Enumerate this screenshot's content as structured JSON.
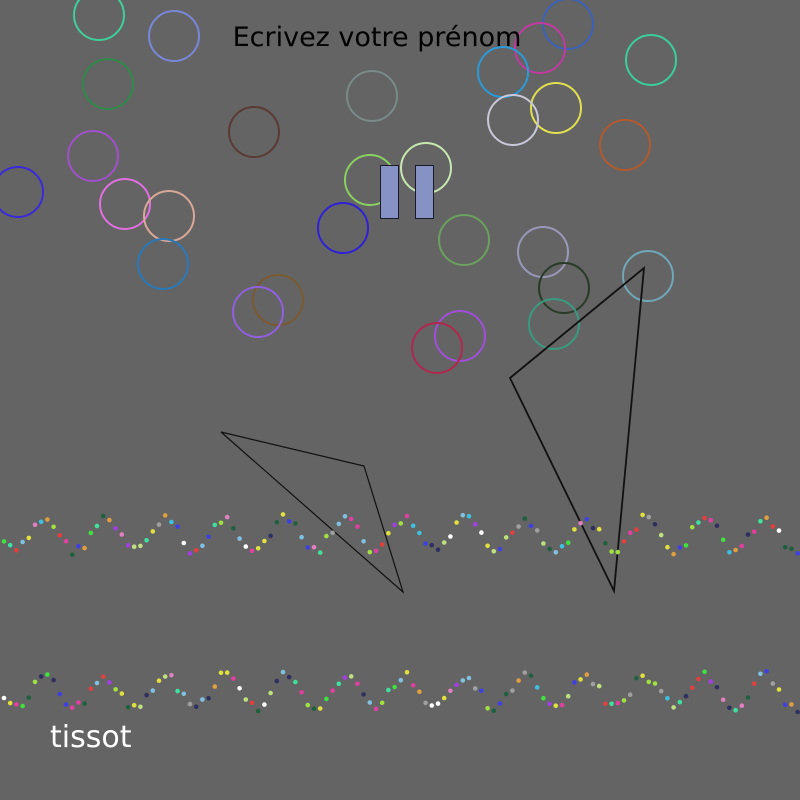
{
  "game": {
    "prompt": "Ecrivez votre prénom",
    "player_name": "tissot"
  },
  "controls": {
    "pause_icon": "pause-icon",
    "pause_color": "#8792c4"
  },
  "colors": {
    "background": "#646464"
  }
}
